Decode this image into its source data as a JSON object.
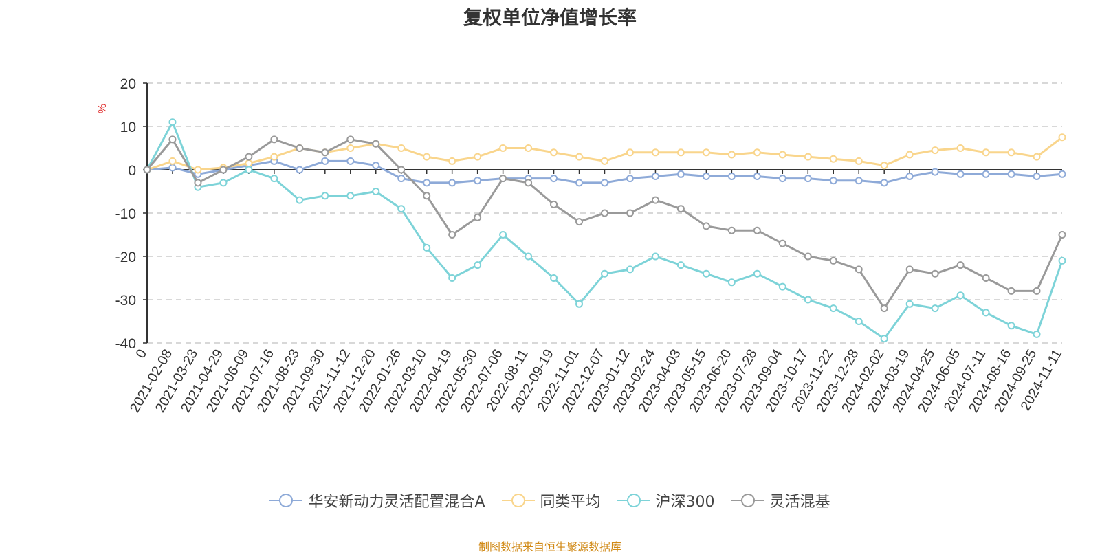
{
  "chart_data": {
    "type": "line",
    "title": "复权单位净值增长率",
    "ylabel": "%",
    "ylim": [
      -40,
      20
    ],
    "yticks": [
      20,
      10,
      0,
      -10,
      -20,
      -30,
      -40
    ],
    "grid": true,
    "legend_position": "bottom-center",
    "x": [
      "0",
      "2021-02-08",
      "2021-03-23",
      "2021-04-29",
      "2021-06-09",
      "2021-07-16",
      "2021-08-23",
      "2021-09-30",
      "2021-11-12",
      "2021-12-20",
      "2022-01-26",
      "2022-03-10",
      "2022-04-19",
      "2022-05-30",
      "2022-07-06",
      "2022-08-11",
      "2022-09-19",
      "2022-11-01",
      "2022-12-07",
      "2023-01-12",
      "2023-02-24",
      "2023-04-03",
      "2023-05-15",
      "2023-06-20",
      "2023-07-28",
      "2023-09-04",
      "2023-10-17",
      "2023-11-22",
      "2023-12-28",
      "2024-02-02",
      "2024-03-19",
      "2024-04-25",
      "2024-06-05",
      "2024-07-11",
      "2024-08-16",
      "2024-09-25",
      "2024-11-11"
    ],
    "series": [
      {
        "name": "华安新动力灵活配置混合A",
        "color": "#8eaad8",
        "values": [
          0,
          0.5,
          -1,
          0,
          1,
          2,
          0,
          2,
          2,
          1,
          -2,
          -3,
          -3,
          -2.5,
          -2,
          -2,
          -2,
          -3,
          -3,
          -2,
          -1.5,
          -1,
          -1.5,
          -1.5,
          -1.5,
          -2,
          -2,
          -2.5,
          -2.5,
          -3,
          -1.5,
          -0.5,
          -1,
          -1,
          -1,
          -1.5,
          -1
        ]
      },
      {
        "name": "同类平均",
        "color": "#f9d58c",
        "values": [
          0,
          2,
          0,
          0.5,
          1.5,
          3,
          5,
          4,
          5,
          6,
          5,
          3,
          2,
          3,
          5,
          5,
          4,
          3,
          2,
          4,
          4,
          4,
          4,
          3.5,
          4,
          3.5,
          3,
          2.5,
          2,
          1,
          3.5,
          4.5,
          5,
          4,
          4,
          3,
          7.5
        ]
      },
      {
        "name": "沪深300",
        "color": "#7dd3d8",
        "values": [
          0,
          11,
          -4,
          -3,
          0,
          -2,
          -7,
          -6,
          -6,
          -5,
          -9,
          -18,
          -25,
          -22,
          -15,
          -20,
          -25,
          -31,
          -24,
          -23,
          -20,
          -22,
          -24,
          -26,
          -24,
          -27,
          -30,
          -32,
          -35,
          -39,
          -31,
          -32,
          -29,
          -33,
          -36,
          -38,
          -21
        ]
      },
      {
        "name": "灵活混基",
        "color": "#9a9a9a",
        "values": [
          0,
          7,
          -3,
          0,
          3,
          7,
          5,
          4,
          7,
          6,
          0,
          -6,
          -15,
          -11,
          -2,
          -3,
          -8,
          -12,
          -10,
          -10,
          -7,
          -9,
          -13,
          -14,
          -14,
          -17,
          -20,
          -21,
          -23,
          -32,
          -23,
          -24,
          -22,
          -25,
          -28,
          -28,
          -15
        ]
      }
    ]
  },
  "footer": "制图数据来自恒生聚源数据库"
}
